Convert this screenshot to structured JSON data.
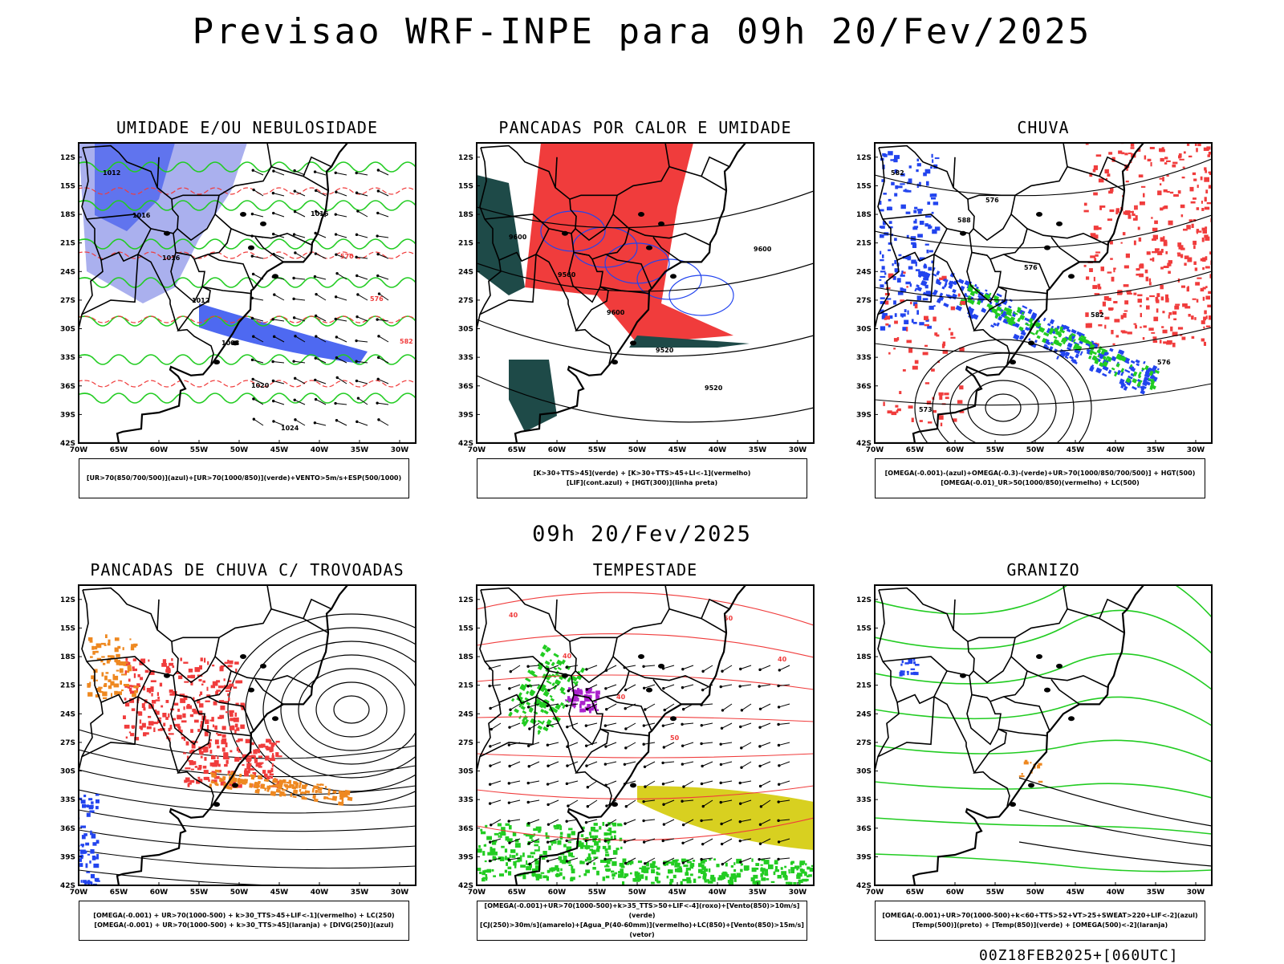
{
  "header": {
    "title": "Previsao WRF-INPE  para 09h 20/Fev/2025"
  },
  "middle_title": "09h 20/Fev/2025",
  "footer": "00Z18FEB2025+[060UTC]",
  "lat_labels": [
    "12S",
    "15S",
    "18S",
    "21S",
    "24S",
    "27S",
    "30S",
    "33S",
    "36S",
    "39S",
    "42S"
  ],
  "lon_labels": [
    "70W",
    "65W",
    "60W",
    "55W",
    "50W",
    "45W",
    "40W",
    "35W",
    "30W"
  ],
  "panels": [
    {
      "title": "UMIDADE E/OU NEBULOSIDADE",
      "legend": [
        "[UR>70(850/700/500)](azul)+[UR>70(1000/850)](verde)+VENTO>5m/s+ESP(500/1000)"
      ],
      "contour_labels": [
        "1012",
        "1016",
        "1016",
        "1012",
        "1008",
        "1020",
        "1024",
        "1016",
        "570",
        "576",
        "582"
      ]
    },
    {
      "title": "PANCADAS POR CALOR E UMIDADE",
      "legend": [
        "[K>30+TTS>45](verde) + [K>30+TTS>45+LI<-1](vermelho)",
        "[LIF](cont.azul) + [HGT(300)](linha preta)"
      ],
      "contour_labels": [
        "9600",
        "9560",
        "9600",
        "9520",
        "9520",
        "9600"
      ]
    },
    {
      "title": "CHUVA",
      "legend": [
        "[OMEGA(-0.001)-(azul)+OMEGA(-0.3)-(verde)+UR>70(1000/850/700/500)] + HGT(500)",
        "[OMEGA(-0.01)_UR>50(1000/850)(vermelho) + LC(500)"
      ],
      "contour_labels": [
        "582",
        "588",
        "576",
        "582",
        "576",
        "573",
        "576"
      ]
    },
    {
      "title": "PANCADAS DE CHUVA C/ TROVOADAS",
      "legend": [
        "[OMEGA(-0.001) + UR>70(1000-500) + k>30_TTS>45+LIF<-1](vermelho) + LC(250)",
        "[OMEGA(-0.001) + UR>70(1000-500) + k>30_TTS>45](laranja) + [DIVG(250)](azul)"
      ],
      "contour_labels": []
    },
    {
      "title": "TEMPESTADE",
      "legend": [
        "[OMEGA(-0.001)+UR>70(1000-500)+k>35_TTS>50+LIF<-4](roxo)+[Vento(850)>10m/s](verde)",
        "[CJ(250)>30m/s](amarelo)+[Agua_P(40-60mm)](vermelho)+LC(850)+[Vento(850)>15m/s](vetor)"
      ],
      "contour_labels": [
        "40",
        "40",
        "40",
        "50",
        "50",
        "40"
      ]
    },
    {
      "title": "GRANIZO",
      "legend": [
        "[OMEGA(-0.001)+UR>70(1000-500)+k<60+TTS>52+VT>25+SWEAT>220+LIF<-2](azul)",
        "[Temp(500)](preto) + [Temp(850)](verde) + [OMEGA(500)<-2](laranja)"
      ],
      "contour_labels": []
    }
  ],
  "colors": {
    "red": "#f03c3c",
    "blue": "#2244ee",
    "green": "#22cc22",
    "lavender": "#aab0ee",
    "darkteal": "#1e4a48",
    "yellow": "#d8d020",
    "orange": "#ee8820",
    "purple": "#aa22cc"
  }
}
